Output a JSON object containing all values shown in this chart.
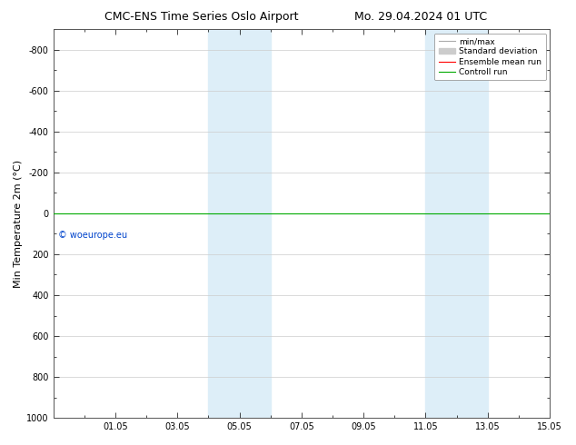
{
  "title": "CMC-ENS Time Series Oslo Airport",
  "title2": "Mo. 29.04.2024 01 UTC",
  "ylabel": "Min Temperature 2m (°C)",
  "xlabel": "",
  "ylim_top": -900,
  "ylim_bottom": 1000,
  "yticks": [
    -800,
    -600,
    -400,
    -200,
    0,
    200,
    400,
    600,
    800,
    1000
  ],
  "xtick_labels": [
    "01.05",
    "03.05",
    "05.05",
    "07.05",
    "09.05",
    "11.05",
    "13.05",
    "15.05"
  ],
  "xtick_days": [
    2,
    4,
    6,
    8,
    10,
    12,
    14,
    16
  ],
  "xlim_days": [
    0,
    16
  ],
  "shaded_regions": [
    {
      "start_day": 5,
      "end_day": 7
    },
    {
      "start_day": 12,
      "end_day": 14
    }
  ],
  "shaded_color": "#ddeef8",
  "control_run_y": 0,
  "ensemble_mean_y": 0,
  "watermark": "© woeurope.eu",
  "watermark_color": "#0044cc",
  "bg_color": "#ffffff",
  "plot_bg_color": "#ffffff",
  "legend_entries": [
    "min/max",
    "Standard deviation",
    "Ensemble mean run",
    "Controll run"
  ],
  "legend_line_color": "#aaaaaa",
  "legend_std_color": "#cccccc",
  "legend_ensemble_color": "#ff0000",
  "legend_control_color": "#00aa00",
  "grid_color": "#cccccc",
  "tick_font_size": 7,
  "title_font_size": 9,
  "ylabel_font_size": 8
}
